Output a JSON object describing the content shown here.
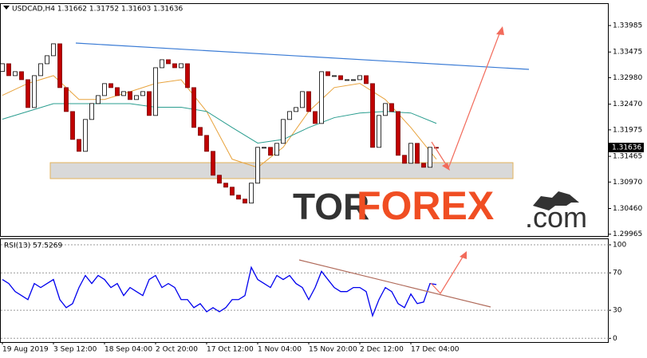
{
  "chart_data": [
    {
      "type": "candlestick",
      "title": "USDCAD,H4 1.31662 1.31752 1.31603 1.31636",
      "current_price": 1.31636,
      "watermark": [
        "TOR",
        "FOREX",
        ".com"
      ],
      "open": [
        1.331,
        1.33249,
        1.33019,
        1.33096,
        1.32942,
        1.32405,
        1.33019,
        1.33249,
        1.33403,
        1.33633,
        1.32789,
        1.32328,
        1.31791,
        1.31561,
        1.32175,
        1.32482,
        1.32635,
        1.32866,
        1.32789,
        1.32635,
        1.32712,
        1.32559,
        1.32635,
        1.32712,
        1.32252,
        1.33172,
        1.33326,
        1.33249,
        1.33172,
        1.33249,
        1.32789,
        1.32022,
        1.31868,
        1.31561,
        1.31101,
        1.30948,
        1.30871,
        1.30717,
        1.30641,
        1.30564,
        1.30948,
        1.31638,
        1.31638,
        1.31485,
        1.31715,
        1.32175,
        1.32328,
        1.32405,
        1.32712,
        1.32328,
        1.32098,
        1.33096,
        1.33019,
        1.33019,
        1.32942,
        1.32942,
        1.32942,
        1.33019,
        1.32866,
        1.31638,
        1.32252,
        1.32482,
        1.32328,
        1.31485,
        1.31331,
        1.31715,
        1.31331,
        1.31254,
        1.31638
      ],
      "close": [
        1.33249,
        1.33019,
        1.33096,
        1.32942,
        1.32405,
        1.33019,
        1.33249,
        1.33403,
        1.33633,
        1.32789,
        1.32328,
        1.31791,
        1.31561,
        1.32175,
        1.32482,
        1.32635,
        1.32866,
        1.32789,
        1.32635,
        1.32712,
        1.32559,
        1.32635,
        1.32712,
        1.32252,
        1.33172,
        1.33326,
        1.33249,
        1.33172,
        1.33249,
        1.32789,
        1.32022,
        1.31868,
        1.31561,
        1.31101,
        1.30948,
        1.30871,
        1.30717,
        1.30641,
        1.30564,
        1.30948,
        1.31638,
        1.31638,
        1.31485,
        1.31715,
        1.32175,
        1.32328,
        1.32405,
        1.32712,
        1.32328,
        1.32098,
        1.33096,
        1.33019,
        1.33019,
        1.32942,
        1.32942,
        1.32942,
        1.33019,
        1.32866,
        1.31638,
        1.32252,
        1.32482,
        1.32328,
        1.31485,
        1.31331,
        1.31715,
        1.31331,
        1.31254,
        1.31638,
        1.31636
      ],
      "up_color": "#ffffff",
      "down_color": "#c00000",
      "overlays": [
        {
          "color": "#e8a33d",
          "x": [
            0,
            4,
            8,
            12,
            16,
            20,
            24,
            28,
            32,
            36,
            40,
            44,
            48,
            52,
            56,
            60,
            64,
            68
          ],
          "values": [
            1.3264,
            1.3287,
            1.3302,
            1.3256,
            1.3256,
            1.3271,
            1.3287,
            1.3294,
            1.3233,
            1.3141,
            1.3125,
            1.3164,
            1.3233,
            1.3279,
            1.3287,
            1.3256,
            1.3202,
            1.3141
          ]
        },
        {
          "color": "#2a9d8f",
          "x": [
            0,
            4,
            8,
            12,
            16,
            20,
            24,
            28,
            32,
            36,
            40,
            44,
            48,
            52,
            56,
            60,
            64,
            68
          ],
          "values": [
            1.3218,
            1.3233,
            1.3248,
            1.3248,
            1.3248,
            1.3248,
            1.3241,
            1.3241,
            1.3233,
            1.3202,
            1.3172,
            1.3179,
            1.3202,
            1.3221,
            1.323,
            1.3233,
            1.323,
            1.321
          ]
        }
      ],
      "ylim": [
        1.2993,
        1.344
      ],
      "yticks": [
        1.33985,
        1.33475,
        {
          "value": 1.3298,
          "label": "1.32980"
        },
        {
          "value": 1.3247,
          "label": "1.32470"
        },
        1.31975,
        1.31465,
        {
          "value": 1.3097,
          "label": "1.30970"
        },
        {
          "value": 1.3046,
          "label": "1.30460"
        },
        1.29965
      ]
    },
    {
      "type": "line",
      "title": "RSI(13) 57.5269",
      "color": "#0000ee",
      "categories": [
        "19 Aug 2019",
        null,
        null,
        null,
        null,
        null,
        null,
        null,
        "3 Sep 12:00",
        null,
        null,
        null,
        null,
        null,
        null,
        null,
        "18 Sep 04:00",
        null,
        null,
        null,
        null,
        null,
        null,
        null,
        "2 Oct 20:00",
        null,
        null,
        null,
        null,
        null,
        null,
        null,
        "17 Oct 12:00",
        null,
        null,
        null,
        null,
        null,
        null,
        null,
        "1 Nov 04:00",
        null,
        null,
        null,
        null,
        null,
        null,
        null,
        "15 Nov 20:00",
        null,
        null,
        null,
        null,
        null,
        null,
        null,
        "2 Dec 12:00",
        null,
        null,
        null,
        null,
        null,
        null,
        null,
        "17 Dec 04:00",
        null,
        null,
        null,
        null
      ],
      "values": [
        62.9,
        58.6,
        50,
        45.7,
        41.4,
        58.6,
        54.3,
        58.6,
        62.9,
        41.4,
        32.8,
        37.1,
        54.3,
        67.2,
        58.6,
        67.2,
        62.9,
        54.3,
        58.6,
        45.7,
        54.3,
        50,
        45.7,
        62.9,
        67.2,
        54.3,
        58.6,
        54.3,
        41.4,
        41.4,
        32.8,
        37.1,
        28.4,
        32.8,
        28.4,
        32.8,
        41.4,
        41.4,
        45.7,
        75.9,
        62.9,
        58.6,
        54.3,
        67.2,
        62.9,
        67.2,
        58.6,
        54.3,
        41.4,
        54.3,
        71.6,
        62.9,
        54.3,
        50,
        50,
        54.3,
        54.3,
        50,
        24.1,
        41.4,
        54.3,
        50,
        37.1,
        32.8,
        47.4,
        37.1,
        38.8,
        58.6,
        57.5269
      ],
      "ylim": [
        -4,
        106
      ],
      "yticks": [
        100,
        70,
        30,
        0
      ],
      "grid": true
    }
  ]
}
